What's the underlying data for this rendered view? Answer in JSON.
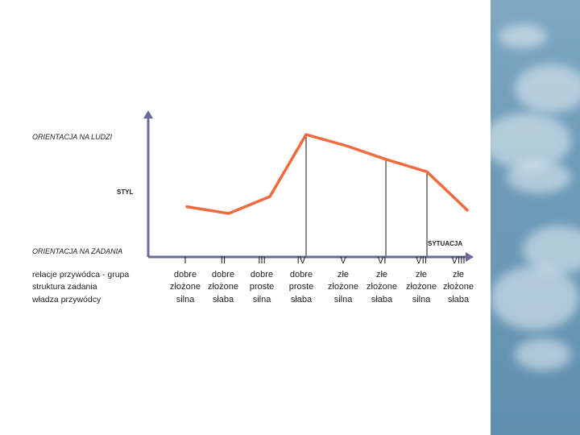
{
  "labels": {
    "orientation_people": "ORIENTACJA NA LUDZI",
    "style": "STYL",
    "orientation_task": "ORIENTACJA NA ZADANIA",
    "situation": "SYTUACJA"
  },
  "row_labels": [
    "relacje przywódca - grupa",
    "struktura zadania",
    "władza przywódcy"
  ],
  "situations": [
    {
      "numeral": "I",
      "relations": "dobre",
      "structure": "złożone",
      "power": "silna"
    },
    {
      "numeral": "II",
      "relations": "dobre",
      "structure": "złożone",
      "power": "słaba"
    },
    {
      "numeral": "III",
      "relations": "dobre",
      "structure": "proste",
      "power": "silna"
    },
    {
      "numeral": "IV",
      "relations": "dobre",
      "structure": "proste",
      "power": "słaba"
    },
    {
      "numeral": "V",
      "relations": "złe",
      "structure": "złożone",
      "power": "silna"
    },
    {
      "numeral": "VI",
      "relations": "złe",
      "structure": "złożone",
      "power": "słaba"
    },
    {
      "numeral": "VII",
      "relations": "złe",
      "structure": "złożone",
      "power": "silna"
    },
    {
      "numeral": "VIII",
      "relations": "złe",
      "structure": "złożone",
      "power": "słaba"
    }
  ],
  "chart_data": {
    "type": "line",
    "categories": [
      "I",
      "II",
      "III",
      "IV",
      "V",
      "VI",
      "VII",
      "VIII"
    ],
    "series": [
      {
        "values": [
          0.31,
          0.25,
          0.4,
          0.95,
          0.85,
          0.73,
          0.62,
          0.28
        ]
      }
    ],
    "ylim": [
      0,
      1
    ],
    "colors": {
      "line": "#f26a3d",
      "axis": "#6a6a9a"
    }
  }
}
